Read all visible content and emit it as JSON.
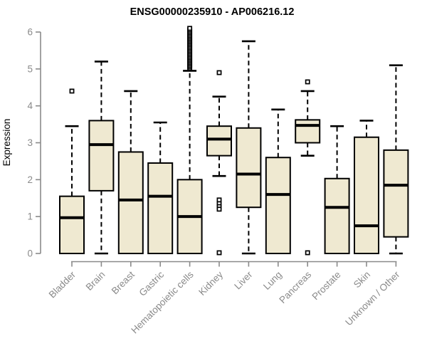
{
  "title": "ENSG00000235910 - AP006216.12",
  "colors": {
    "box_fill": "#efe9d1",
    "box_border": "#000000",
    "axis": "#8a8a8a",
    "axis_text": "#8a8a8a",
    "title_text": "#000000"
  },
  "chart_data": {
    "type": "boxplot",
    "title": "ENSG00000235910 - AP006216.12",
    "xlabel": "",
    "ylabel": "Expression",
    "ylim": [
      0,
      6.2
    ],
    "yticks": [
      0,
      1,
      2,
      3,
      4,
      5,
      6
    ],
    "grid": false,
    "legend": "none",
    "categories": [
      "Bladder",
      "Brain",
      "Breast",
      "Gastric",
      "Hematopoietic cells",
      "Kidney",
      "Liver",
      "Lung",
      "Pancreas",
      "Prostate",
      "Skin",
      "Unknown / Other"
    ],
    "series": [
      {
        "category": "Bladder",
        "low": 0,
        "q1": 0,
        "median": 0.97,
        "q3": 1.55,
        "high": 3.45,
        "outliers": [
          4.4
        ]
      },
      {
        "category": "Brain",
        "low": 0,
        "q1": 1.7,
        "median": 2.95,
        "q3": 3.6,
        "high": 5.2,
        "outliers": []
      },
      {
        "category": "Breast",
        "low": 0,
        "q1": 0,
        "median": 1.45,
        "q3": 2.75,
        "high": 4.4,
        "outliers": []
      },
      {
        "category": "Gastric",
        "low": 0,
        "q1": 0,
        "median": 1.55,
        "q3": 2.45,
        "high": 3.55,
        "outliers": []
      },
      {
        "category": "Hematopoietic cells",
        "low": 0,
        "q1": 0,
        "median": 1.0,
        "q3": 2.0,
        "high": 4.95,
        "outliers": [
          5.02,
          5.06,
          5.1,
          5.14,
          5.18,
          5.22,
          5.26,
          5.3,
          5.34,
          5.38,
          5.42,
          5.46,
          5.5,
          5.54,
          5.58,
          5.62,
          5.66,
          5.7,
          5.74,
          5.78,
          5.82,
          5.86,
          5.9,
          5.94,
          5.98,
          6.02,
          6.06,
          6.1
        ]
      },
      {
        "category": "Kidney",
        "low": 2.1,
        "q1": 2.65,
        "median": 3.1,
        "q3": 3.45,
        "high": 4.25,
        "outliers": [
          4.9,
          1.45,
          1.35,
          1.27,
          1.2,
          0.02
        ]
      },
      {
        "category": "Liver",
        "low": 0,
        "q1": 1.25,
        "median": 2.15,
        "q3": 3.4,
        "high": 5.75,
        "outliers": []
      },
      {
        "category": "Lung",
        "low": 0,
        "q1": 0,
        "median": 1.6,
        "q3": 2.6,
        "high": 3.9,
        "outliers": []
      },
      {
        "category": "Pancreas",
        "low": 2.65,
        "q1": 3.0,
        "median": 3.47,
        "q3": 3.62,
        "high": 4.4,
        "outliers": [
          4.65,
          0.02
        ]
      },
      {
        "category": "Prostate",
        "low": 0,
        "q1": 0,
        "median": 1.25,
        "q3": 2.03,
        "high": 3.45,
        "outliers": []
      },
      {
        "category": "Skin",
        "low": 0,
        "q1": 0,
        "median": 0.75,
        "q3": 3.15,
        "high": 3.6,
        "outliers": []
      },
      {
        "category": "Unknown / Other",
        "low": 0,
        "q1": 0.45,
        "median": 1.85,
        "q3": 2.8,
        "high": 5.1,
        "outliers": []
      }
    ]
  }
}
